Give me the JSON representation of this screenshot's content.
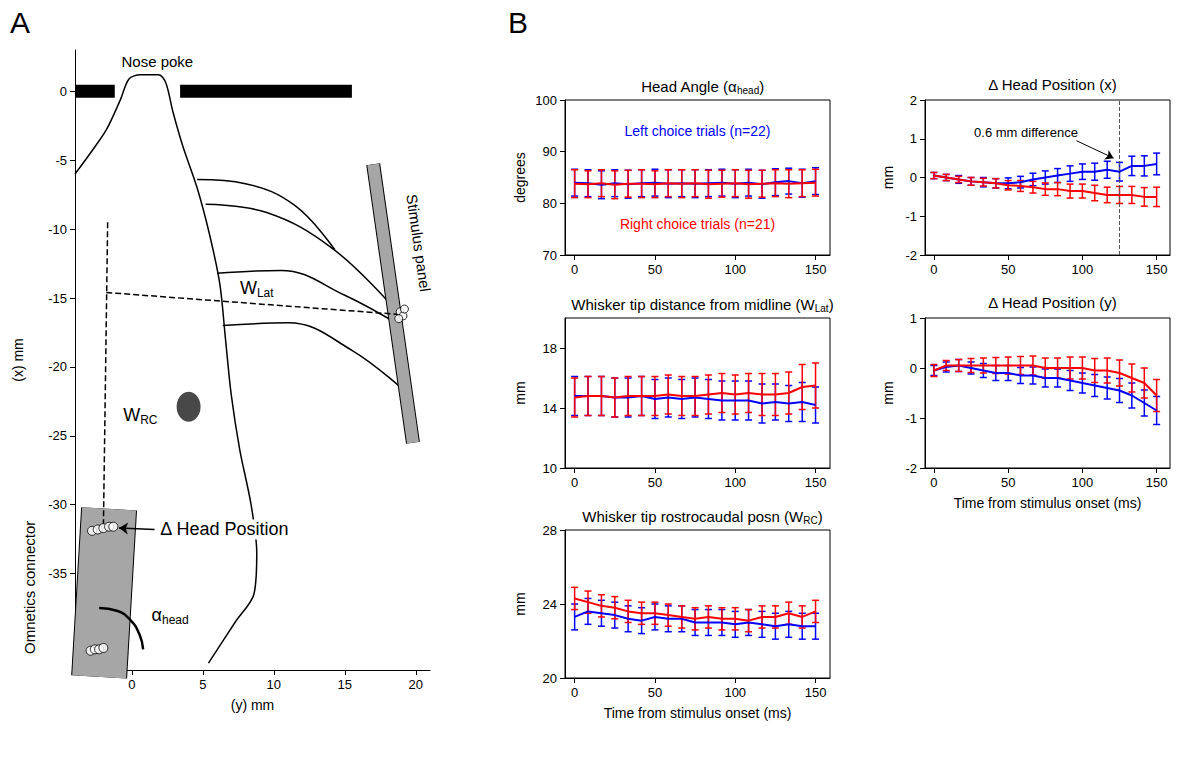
{
  "panel_labels": [
    "A",
    "B"
  ],
  "chart_data": [
    {
      "type": "diagram",
      "xlabel": "(y) mm",
      "ylabel": "(x) mm",
      "xlim": [
        -4,
        21
      ],
      "xticks": [
        0,
        5,
        10,
        15,
        20
      ],
      "ylim": [
        -42,
        3
      ],
      "yticks": [
        0,
        -5,
        -10,
        -15,
        -20,
        -25,
        -30,
        -35
      ],
      "shapes": {
        "nose_poke_left": [
          [
            -4,
            0
          ],
          [
            -1.2,
            0
          ]
        ],
        "nose_poke_right": [
          [
            3.4,
            0
          ],
          [
            15.5,
            0
          ]
        ],
        "head": [
          [
            -4,
            -6.0
          ],
          [
            -3,
            -4.6
          ],
          [
            -1.8,
            -2.8
          ],
          [
            -0.8,
            -0.6
          ],
          [
            -0.2,
            0.9
          ],
          [
            0.6,
            1.2
          ],
          [
            1.9,
            1.2
          ],
          [
            2.4,
            0.6
          ],
          [
            2.9,
            -1.5
          ],
          [
            3.6,
            -4.0
          ],
          [
            4.6,
            -7.0
          ],
          [
            5.5,
            -10.5
          ],
          [
            6.2,
            -14.0
          ],
          [
            6.6,
            -18.0
          ],
          [
            7.0,
            -22.0
          ],
          [
            7.6,
            -26.0
          ],
          [
            8.4,
            -30.0
          ],
          [
            8.8,
            -33.5
          ],
          [
            8.6,
            -36.5
          ],
          [
            7.3,
            -38.5
          ],
          [
            5.4,
            -41.5
          ]
        ],
        "whiskers": [
          [
            [
              4.6,
              -6.4
            ],
            [
              8.0,
              -6.7
            ],
            [
              11.5,
              -8.3
            ],
            [
              14.3,
              -11.5
            ]
          ],
          [
            [
              5.2,
              -8.2
            ],
            [
              9.5,
              -8.8
            ],
            [
              14.0,
              -11.3
            ],
            [
              18.0,
              -15.2
            ]
          ],
          [
            [
              6.0,
              -13.2
            ],
            [
              10.5,
              -13.0
            ],
            [
              15.0,
              -14.8
            ],
            [
              18.9,
              -17.0
            ]
          ],
          [
            [
              6.4,
              -17.0
            ],
            [
              11.0,
              -16.8
            ],
            [
              15.5,
              -18.8
            ],
            [
              19.5,
              -22.0
            ]
          ]
        ],
        "eye": [
          4.0,
          -22.9
        ],
        "stimulus_panel": [
          [
            17.0,
            -5.3
          ],
          [
            19.8,
            -25.5
          ]
        ],
        "whisker_tips": [
          [
            18.9,
            -16.0
          ],
          [
            19.1,
            -16.3
          ],
          [
            18.8,
            -16.5
          ],
          [
            19.2,
            -15.8
          ]
        ],
        "connector": [
          [
            -1.6,
            -30.3
          ],
          [
            -2.3,
            -42.5
          ]
        ],
        "connector_dots": [
          [
            -2.8,
            -31.9
          ],
          [
            -2.4,
            -31.8
          ],
          [
            -2.0,
            -31.7
          ],
          [
            -1.6,
            -31.6
          ],
          [
            -1.3,
            -31.6
          ],
          [
            -2.9,
            -40.6
          ],
          [
            -2.6,
            -40.5
          ],
          [
            -2.3,
            -40.5
          ],
          [
            -2.0,
            -40.4
          ]
        ],
        "w_rc_line": [
          [
            -1.7,
            -9.5
          ],
          [
            -2.0,
            -31.6
          ]
        ],
        "w_lat_line": [
          [
            -1.8,
            -14.6
          ],
          [
            18.9,
            -16.2
          ]
        ],
        "alpha_arc": [
          [
            -2.3,
            -37.5
          ],
          [
            -1.05,
            -37.7
          ],
          [
            -0.08,
            -38.4
          ],
          [
            0.55,
            -39.45
          ],
          [
            0.8,
            -40.5
          ]
        ]
      },
      "annotations": {
        "nose_poke": "Nose poke",
        "stimulus_panel": "Stimulus panel",
        "omnetics_connector": "Omnetics connector",
        "delta_head_position": "Δ Head Position",
        "w_lat": [
          {
            "text": "W"
          },
          {
            "text": "Lat",
            "sub": true
          }
        ],
        "w_rc": [
          {
            "text": "W"
          },
          {
            "text": "RC",
            "sub": true
          }
        ],
        "alpha_head": [
          {
            "text": "α"
          },
          {
            "text": "head",
            "sub": true
          }
        ]
      }
    },
    {
      "type": "line",
      "title": [
        {
          "text": "Head Angle (α"
        },
        {
          "text": "head",
          "sub": true
        },
        {
          "text": ")"
        }
      ],
      "ylabel": "degrees",
      "xlim": [
        -6,
        159
      ],
      "xticks": [
        0,
        50,
        100,
        150
      ],
      "ylim": [
        70,
        100
      ],
      "yticks": [
        70,
        80,
        90,
        100
      ],
      "x": [
        0,
        8.3,
        16.7,
        25,
        33.3,
        41.7,
        50,
        58.3,
        66.7,
        75,
        83.3,
        91.7,
        100,
        108.3,
        116.7,
        125,
        133.3,
        141.7,
        150
      ],
      "series": [
        {
          "name": "Left choice trials (n=22)",
          "color": "#0000ff",
          "values": [
            84.0,
            83.9,
            83.6,
            83.9,
            83.7,
            83.9,
            84.0,
            83.8,
            83.9,
            83.8,
            83.9,
            84.0,
            83.8,
            84.0,
            83.7,
            84.1,
            84.3,
            83.9,
            84.3
          ],
          "errors": [
            2.6,
            2.6,
            2.7,
            2.6,
            2.7,
            2.6,
            2.6,
            2.7,
            2.6,
            2.7,
            2.6,
            2.6,
            2.7,
            2.6,
            2.7,
            2.6,
            2.5,
            2.7,
            2.6
          ]
        },
        {
          "name": "Right choice trials (n=21)",
          "color": "#ff0000",
          "values": [
            83.8,
            83.7,
            83.9,
            83.6,
            83.8,
            83.8,
            83.7,
            83.9,
            83.8,
            83.9,
            83.7,
            83.8,
            83.9,
            83.7,
            83.8,
            83.9,
            83.8,
            83.9,
            84.0
          ],
          "errors": [
            2.7,
            2.6,
            2.6,
            2.7,
            2.6,
            2.7,
            2.6,
            2.6,
            2.7,
            2.6,
            2.7,
            2.6,
            2.6,
            2.7,
            2.6,
            2.6,
            2.7,
            2.6,
            2.6
          ]
        }
      ]
    },
    {
      "type": "line",
      "title": [
        {
          "text": "Whisker tip distance from midline (W"
        },
        {
          "text": "Lat",
          "sub": true
        },
        {
          "text": ")"
        }
      ],
      "ylabel": "mm",
      "xlim": [
        -6,
        159
      ],
      "xticks": [
        0,
        50,
        100,
        150
      ],
      "ylim": [
        10,
        20
      ],
      "yticks": [
        10,
        14,
        18
      ],
      "x": [
        0,
        8.3,
        16.7,
        25,
        33.3,
        41.7,
        50,
        58.3,
        66.7,
        75,
        83.3,
        91.7,
        100,
        108.3,
        116.7,
        125,
        133.3,
        141.7,
        150
      ],
      "series": [
        {
          "color": "#0000ff",
          "values": [
            14.8,
            14.8,
            14.8,
            14.7,
            14.7,
            14.8,
            14.6,
            14.7,
            14.6,
            14.7,
            14.6,
            14.5,
            14.5,
            14.5,
            14.3,
            14.4,
            14.3,
            14.4,
            14.2
          ],
          "errors": [
            1.3,
            1.3,
            1.3,
            1.3,
            1.3,
            1.3,
            1.3,
            1.3,
            1.3,
            1.3,
            1.3,
            1.3,
            1.3,
            1.3,
            1.3,
            1.2,
            1.2,
            1.3,
            1.2
          ]
        },
        {
          "color": "#ff0000",
          "values": [
            14.7,
            14.8,
            14.8,
            14.7,
            14.8,
            14.8,
            14.8,
            14.9,
            14.8,
            14.8,
            14.9,
            15.0,
            14.9,
            15.0,
            14.9,
            14.9,
            15.0,
            15.4,
            15.5
          ],
          "errors": [
            1.3,
            1.3,
            1.3,
            1.3,
            1.3,
            1.3,
            1.3,
            1.3,
            1.3,
            1.3,
            1.3,
            1.3,
            1.3,
            1.3,
            1.4,
            1.4,
            1.4,
            1.5,
            1.5
          ]
        }
      ]
    },
    {
      "type": "line",
      "title": [
        {
          "text": "Whisker tip rostrocaudal posn (W"
        },
        {
          "text": "RC",
          "sub": true
        },
        {
          "text": ")"
        }
      ],
      "ylabel": "mm",
      "xlabel": "Time from stimulus onset (ms)",
      "xlim": [
        -6,
        159
      ],
      "xticks": [
        0,
        50,
        100,
        150
      ],
      "ylim": [
        20,
        28
      ],
      "yticks": [
        20,
        24,
        28
      ],
      "x": [
        0,
        8.3,
        16.7,
        25,
        33.3,
        41.7,
        50,
        58.3,
        66.7,
        75,
        83.3,
        91.7,
        100,
        108.3,
        116.7,
        125,
        133.3,
        141.7,
        150
      ],
      "series": [
        {
          "color": "#0000ff",
          "values": [
            23.3,
            23.6,
            23.5,
            23.4,
            23.2,
            23.1,
            23.3,
            23.2,
            23.2,
            23.0,
            23.0,
            23.0,
            22.9,
            23.0,
            22.9,
            22.8,
            22.9,
            22.8,
            22.8
          ],
          "errors": [
            0.7,
            0.7,
            0.7,
            0.7,
            0.7,
            0.7,
            0.7,
            0.7,
            0.7,
            0.7,
            0.7,
            0.7,
            0.7,
            0.7,
            0.7,
            0.7,
            0.7,
            0.7,
            0.7
          ]
        },
        {
          "color": "#ff0000",
          "values": [
            24.3,
            24.1,
            23.9,
            23.8,
            23.6,
            23.5,
            23.5,
            23.4,
            23.3,
            23.2,
            23.3,
            23.2,
            23.2,
            23.1,
            23.3,
            23.3,
            23.5,
            23.3,
            23.6
          ],
          "errors": [
            0.6,
            0.6,
            0.6,
            0.6,
            0.6,
            0.6,
            0.6,
            0.6,
            0.6,
            0.6,
            0.6,
            0.6,
            0.6,
            0.6,
            0.6,
            0.6,
            0.6,
            0.6,
            0.6
          ]
        }
      ]
    },
    {
      "type": "line",
      "title": [
        {
          "text": "Δ Head Position (x)"
        }
      ],
      "ylabel": "mm",
      "xlim": [
        -6,
        159
      ],
      "xticks": [
        0,
        50,
        100,
        150
      ],
      "ylim": [
        -2,
        2
      ],
      "yticks": [
        -2,
        -1,
        0,
        1,
        2
      ],
      "vline": 125,
      "annotation": "0.6 mm difference",
      "x": [
        0,
        8.3,
        16.7,
        25,
        33.3,
        41.7,
        50,
        58.3,
        66.7,
        75,
        83.3,
        91.7,
        100,
        108.3,
        116.7,
        125,
        133.3,
        141.7,
        150
      ],
      "series": [
        {
          "color": "#0000ff",
          "values": [
            0.05,
            0,
            -0.05,
            -0.1,
            -0.12,
            -0.15,
            -0.15,
            -0.12,
            -0.05,
            0,
            0.05,
            0.1,
            0.15,
            0.15,
            0.2,
            0.15,
            0.3,
            0.3,
            0.35
          ],
          "errors": [
            0.08,
            0.08,
            0.1,
            0.1,
            0.12,
            0.12,
            0.14,
            0.15,
            0.16,
            0.17,
            0.18,
            0.2,
            0.2,
            0.22,
            0.22,
            0.24,
            0.25,
            0.26,
            0.28
          ]
        },
        {
          "color": "#ff0000",
          "values": [
            0.05,
            0,
            -0.05,
            -0.1,
            -0.12,
            -0.15,
            -0.2,
            -0.22,
            -0.25,
            -0.3,
            -0.3,
            -0.35,
            -0.35,
            -0.4,
            -0.45,
            -0.45,
            -0.45,
            -0.5,
            -0.5
          ],
          "errors": [
            0.08,
            0.08,
            0.08,
            0.1,
            0.1,
            0.12,
            0.12,
            0.14,
            0.15,
            0.16,
            0.17,
            0.18,
            0.18,
            0.2,
            0.2,
            0.22,
            0.22,
            0.24,
            0.25
          ]
        }
      ]
    },
    {
      "type": "line",
      "title": [
        {
          "text": "Δ Head Position (y)"
        }
      ],
      "ylabel": "mm",
      "xlabel": "Time from stimulus onset (ms)",
      "xlim": [
        -6,
        159
      ],
      "xticks": [
        0,
        50,
        100,
        150
      ],
      "ylim": [
        -2,
        1
      ],
      "yticks": [
        -2,
        -1,
        0,
        1
      ],
      "x": [
        0,
        8.3,
        16.7,
        25,
        33.3,
        41.7,
        50,
        58.3,
        66.7,
        75,
        83.3,
        91.7,
        100,
        108.3,
        116.7,
        125,
        133.3,
        141.7,
        150
      ],
      "series": [
        {
          "color": "#0000ff",
          "values": [
            -0.05,
            0.02,
            0.05,
            0,
            -0.05,
            -0.1,
            -0.1,
            -0.15,
            -0.15,
            -0.2,
            -0.2,
            -0.25,
            -0.3,
            -0.35,
            -0.4,
            -0.45,
            -0.55,
            -0.7,
            -0.85
          ],
          "errors": [
            0.1,
            0.1,
            0.12,
            0.12,
            0.14,
            0.15,
            0.15,
            0.16,
            0.17,
            0.18,
            0.18,
            0.2,
            0.2,
            0.22,
            0.22,
            0.24,
            0.25,
            0.26,
            0.28
          ]
        },
        {
          "color": "#ff0000",
          "values": [
            -0.05,
            0.05,
            0.05,
            0.05,
            0.05,
            0.05,
            0.05,
            0.05,
            0.05,
            0,
            0,
            0,
            0,
            -0.05,
            -0.05,
            -0.1,
            -0.2,
            -0.3,
            -0.55
          ],
          "errors": [
            0.12,
            0.1,
            0.12,
            0.14,
            0.15,
            0.16,
            0.17,
            0.18,
            0.19,
            0.2,
            0.2,
            0.22,
            0.22,
            0.24,
            0.25,
            0.26,
            0.28,
            0.3,
            0.32
          ]
        }
      ]
    }
  ]
}
